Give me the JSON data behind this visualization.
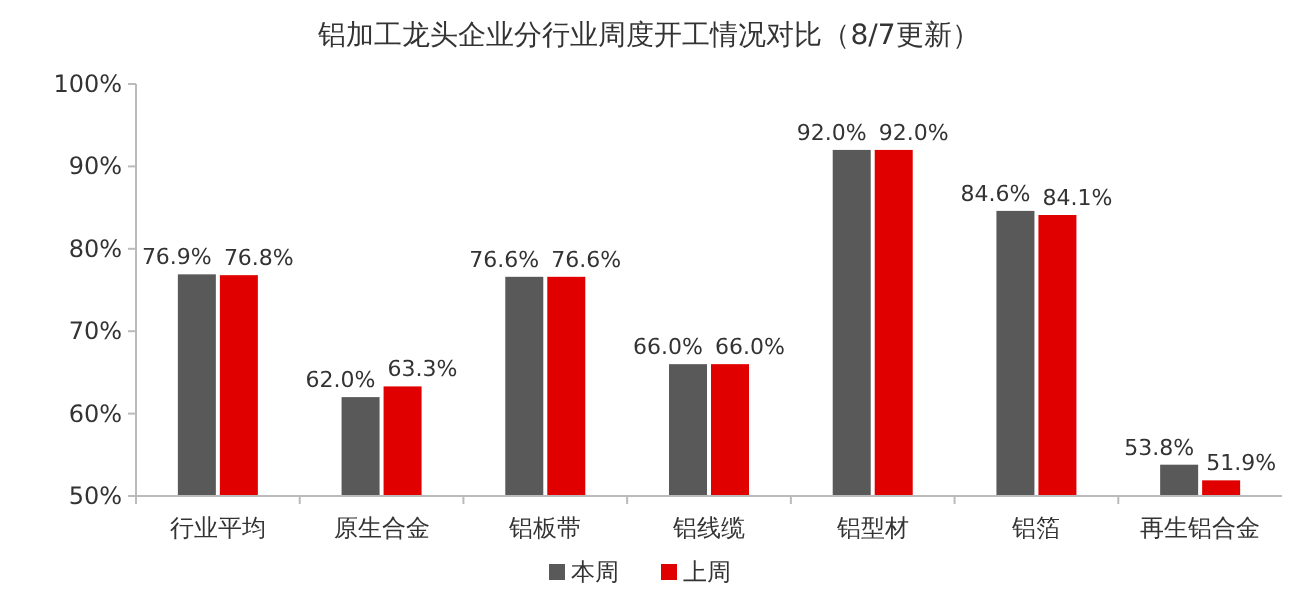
{
  "chart_data": {
    "type": "bar",
    "title": "铝加工龙头企业分行业周度开工情况对比（8/7更新）",
    "categories": [
      "行业平均",
      "原生合金",
      "铝板带",
      "铝线缆",
      "铝型材",
      "铝箔",
      "再生铝合金"
    ],
    "series": [
      {
        "name": "本周",
        "color": "#595959",
        "values": [
          76.9,
          62.0,
          76.6,
          66.0,
          92.0,
          84.6,
          53.8
        ],
        "value_labels": [
          "76.9%",
          "62.0%",
          "76.6%",
          "66.0%",
          "92.0%",
          "84.6%",
          "53.8%"
        ]
      },
      {
        "name": "上周",
        "color": "#e00000",
        "values": [
          76.8,
          63.3,
          76.6,
          66.0,
          92.0,
          84.1,
          51.9
        ],
        "value_labels": [
          "76.8%",
          "63.3%",
          "76.6%",
          "66.0%",
          "92.0%",
          "84.1%",
          "51.9%"
        ]
      }
    ],
    "ylim": [
      50,
      100
    ],
    "yticks": [
      {
        "value": 50,
        "label": "50%"
      },
      {
        "value": 60,
        "label": "60%"
      },
      {
        "value": 70,
        "label": "70%"
      },
      {
        "value": 80,
        "label": "80%"
      },
      {
        "value": 90,
        "label": "90%"
      },
      {
        "value": 100,
        "label": "100%"
      }
    ],
    "legend": "bottom"
  }
}
